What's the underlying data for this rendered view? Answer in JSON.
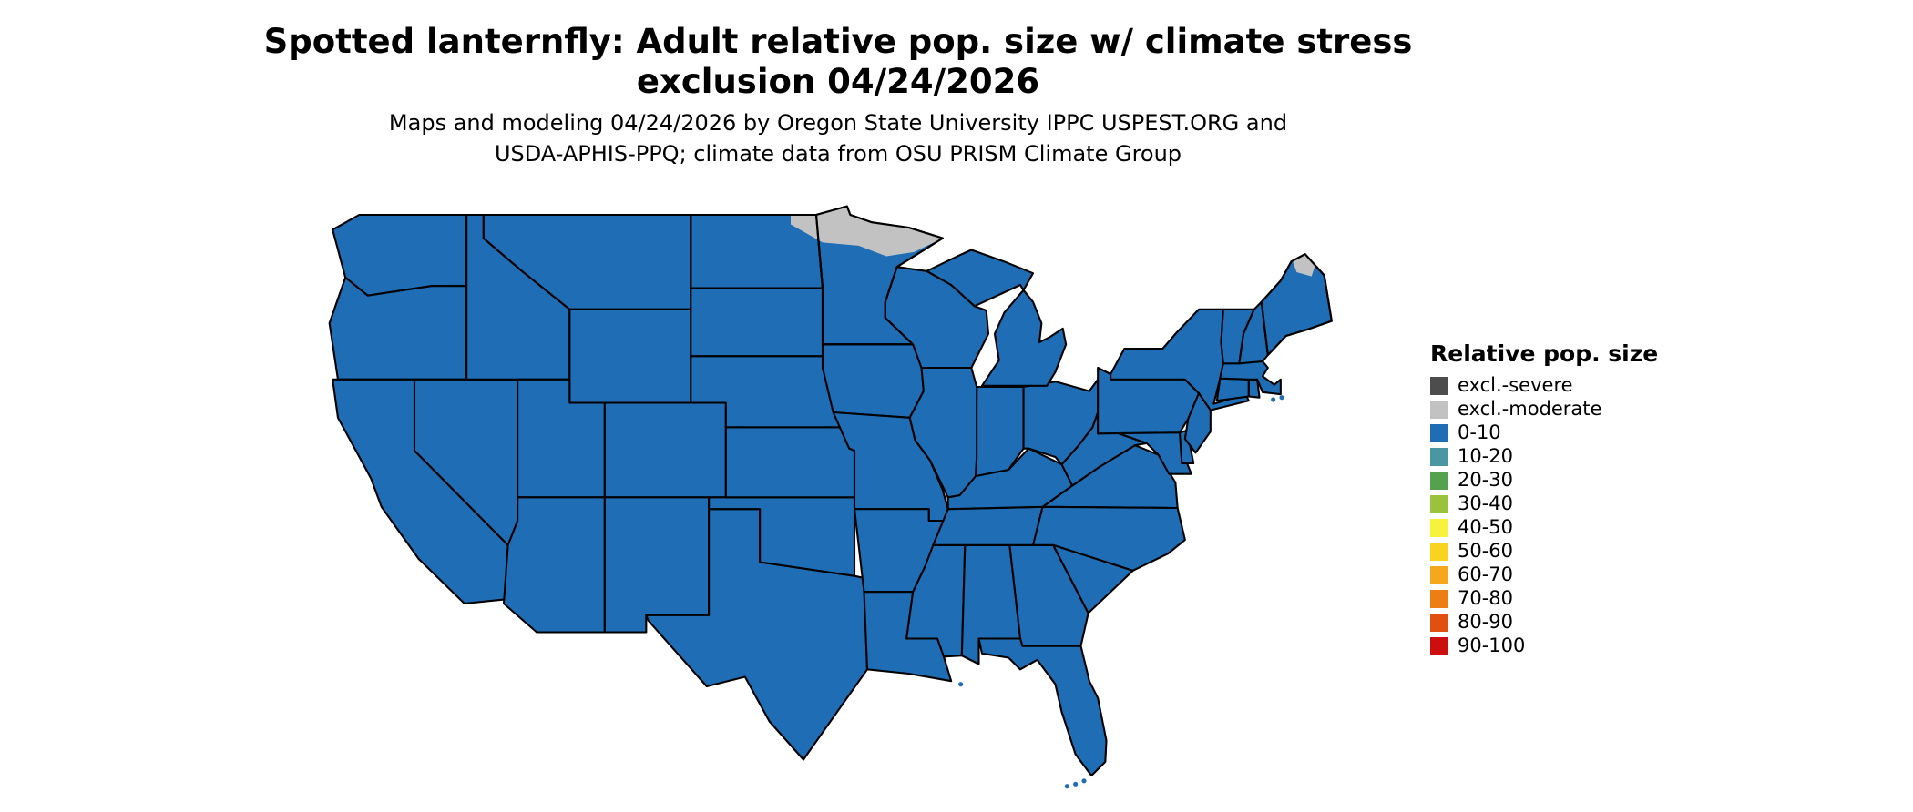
{
  "title": {
    "line1": "Spotted lanternfly: Adult relative pop. size w/ climate stress",
    "line2": "exclusion 04/24/2026"
  },
  "subtitle": {
    "line1": "Maps and modeling 04/24/2026 by Oregon State University IPPC USPEST.ORG and",
    "line2": "USDA-APHIS-PPQ; climate data from OSU PRISM Climate Group"
  },
  "legend": {
    "title": "Relative pop. size",
    "items": [
      {
        "label": "excl.-severe",
        "color": "#4D4D4D"
      },
      {
        "label": "excl.-moderate",
        "color": "#C2C2C2"
      },
      {
        "label": "0-10",
        "color": "#1F6EB5"
      },
      {
        "label": "10-20",
        "color": "#4A96A2"
      },
      {
        "label": "20-30",
        "color": "#55A14E"
      },
      {
        "label": "30-40",
        "color": "#9BC23C"
      },
      {
        "label": "40-50",
        "color": "#F7F23B"
      },
      {
        "label": "50-60",
        "color": "#FAD220"
      },
      {
        "label": "60-70",
        "color": "#F5A81C"
      },
      {
        "label": "70-80",
        "color": "#EC7E14"
      },
      {
        "label": "80-90",
        "color": "#E2500F"
      },
      {
        "label": "90-100",
        "color": "#CC0E0E"
      }
    ]
  },
  "map": {
    "region": "contiguous United States",
    "default_category": "0-10",
    "default_fill": "#1F6EB5",
    "border_color": "#000000",
    "background": "#FFFFFF",
    "excluded_regions": [
      {
        "name": "northern-minnesota-and-nd-border",
        "category": "excl.-moderate"
      },
      {
        "name": "northern-maine",
        "category": "excl.-moderate"
      }
    ]
  }
}
